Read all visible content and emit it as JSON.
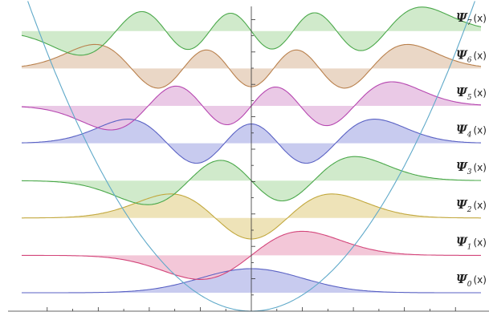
{
  "chart_data": {
    "type": "line",
    "title": "",
    "xlabel": "",
    "ylabel": "",
    "xlim": [
      -4.5,
      4.5
    ],
    "grid": false,
    "legend": "right",
    "potential": {
      "name": "V(x) = x^2/2",
      "color": "#5fa9c9"
    },
    "series": [
      {
        "name": "Ψ_0(x)",
        "label_main": "Ψ",
        "label_sub": "0",
        "label_tail": "(x)",
        "n": 0,
        "color": "#5a62c4",
        "fill": "#c5c8ee"
      },
      {
        "name": "Ψ_1(x)",
        "label_main": "Ψ",
        "label_sub": "1",
        "label_tail": "(x)",
        "n": 1,
        "color": "#d3457a",
        "fill": "#f2c4d6"
      },
      {
        "name": "Ψ_2(x)",
        "label_main": "Ψ",
        "label_sub": "2",
        "label_tail": "(x)",
        "n": 2,
        "color": "#c2a83e",
        "fill": "#ede2b4"
      },
      {
        "name": "Ψ_3(x)",
        "label_main": "Ψ",
        "label_sub": "3",
        "label_tail": "(x)",
        "n": 3,
        "color": "#4aa84a",
        "fill": "#cde9c8"
      },
      {
        "name": "Ψ_4(x)",
        "label_main": "Ψ",
        "label_sub": "4",
        "label_tail": "(x)",
        "n": 4,
        "color": "#5a62c4",
        "fill": "#c5c8ee"
      },
      {
        "name": "Ψ_5(x)",
        "label_main": "Ψ",
        "label_sub": "5",
        "label_tail": "(x)",
        "n": 5,
        "color": "#b646b0",
        "fill": "#e9c6e5"
      },
      {
        "name": "Ψ_6(x)",
        "label_main": "Ψ",
        "label_sub": "6",
        "label_tail": "(x)",
        "n": 6,
        "color": "#b9804c",
        "fill": "#e9d5c3"
      },
      {
        "name": "Ψ_7(x)",
        "label_main": "Ψ",
        "label_sub": "7",
        "label_tail": "(x)",
        "n": 7,
        "color": "#4aa84a",
        "fill": "#cde9c8"
      }
    ]
  }
}
